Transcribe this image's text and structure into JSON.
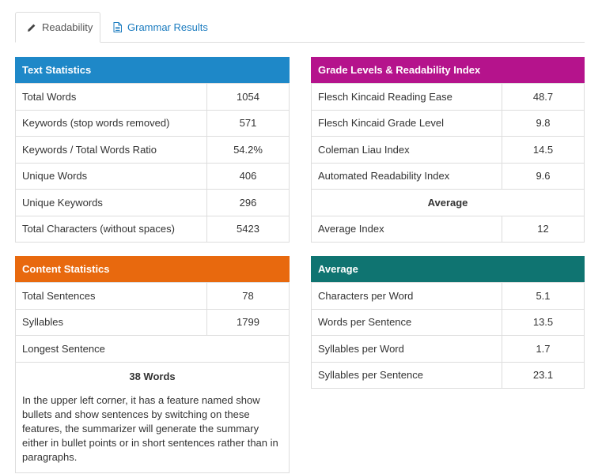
{
  "tabs": [
    {
      "label": "Readability",
      "icon": "pencil-icon"
    },
    {
      "label": "Grammar Results",
      "icon": "document-icon"
    }
  ],
  "colors": {
    "text_statistics": "#1e88c8",
    "grade_levels": "#b5138c",
    "content_statistics": "#e8690e",
    "average": "#0f7471",
    "link": "#1a7bbf"
  },
  "text_statistics": {
    "title": "Text Statistics",
    "rows": [
      {
        "label": "Total Words",
        "value": "1054"
      },
      {
        "label": "Keywords (stop words removed)",
        "value": "571"
      },
      {
        "label": "Keywords / Total Words Ratio",
        "value": "54.2%"
      },
      {
        "label": "Unique Words",
        "value": "406"
      },
      {
        "label": "Unique Keywords",
        "value": "296"
      },
      {
        "label": "Total Characters (without spaces)",
        "value": "5423"
      }
    ]
  },
  "grade_levels": {
    "title": "Grade Levels & Readability Index",
    "rows": [
      {
        "label": "Flesch Kincaid Reading Ease",
        "value": "48.7"
      },
      {
        "label": "Flesch Kincaid Grade Level",
        "value": "9.8"
      },
      {
        "label": "Coleman Liau Index",
        "value": "14.5"
      },
      {
        "label": "Automated Readability Index",
        "value": "9.6"
      }
    ],
    "average_heading": "Average",
    "average_row": {
      "label": "Average Index",
      "value": "12"
    }
  },
  "content_statistics": {
    "title": "Content Statistics",
    "rows": [
      {
        "label": "Total Sentences",
        "value": "78"
      },
      {
        "label": "Syllables",
        "value": "1799"
      }
    ],
    "longest_label": "Longest Sentence",
    "longest_count": "38 Words",
    "longest_text": "In the upper left corner, it has a feature named show bullets and show sentences by switching on these features, the summarizer will generate the summary either in bullet points or in short sentences rather than in paragraphs."
  },
  "average": {
    "title": "Average",
    "rows": [
      {
        "label": "Characters per Word",
        "value": "5.1"
      },
      {
        "label": "Words per Sentence",
        "value": "13.5"
      },
      {
        "label": "Syllables per Word",
        "value": "1.7"
      },
      {
        "label": "Syllables per Sentence",
        "value": "23.1"
      }
    ]
  }
}
